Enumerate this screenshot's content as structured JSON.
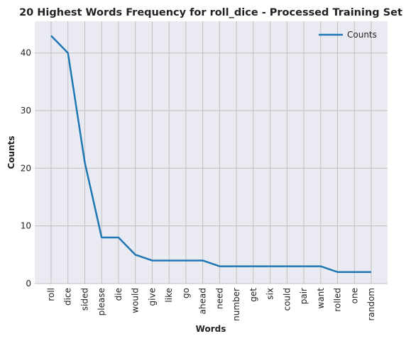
{
  "chart_data": {
    "type": "line",
    "title": "20 Highest Words Frequency for roll_dice - Processed Training Set",
    "xlabel": "Words",
    "ylabel": "Counts",
    "categories": [
      "roll",
      "dice",
      "sided",
      "please",
      "die",
      "would",
      "give",
      "like",
      "go",
      "ahead",
      "need",
      "number",
      "get",
      "six",
      "could",
      "pair",
      "want",
      "rolled",
      "one",
      "random"
    ],
    "series": [
      {
        "name": "Counts",
        "values": [
          43,
          40,
          21,
          8,
          8,
          5,
          4,
          4,
          4,
          4,
          3,
          3,
          3,
          3,
          3,
          3,
          3,
          2,
          2,
          2
        ],
        "color": "#1f77b4"
      }
    ],
    "ylim": [
      0,
      43
    ],
    "yticks": [
      0,
      10,
      20,
      30,
      40
    ],
    "grid": true,
    "legend": "top-right",
    "background": "#eaeaf2",
    "grid_color": "#c0c0c0"
  }
}
